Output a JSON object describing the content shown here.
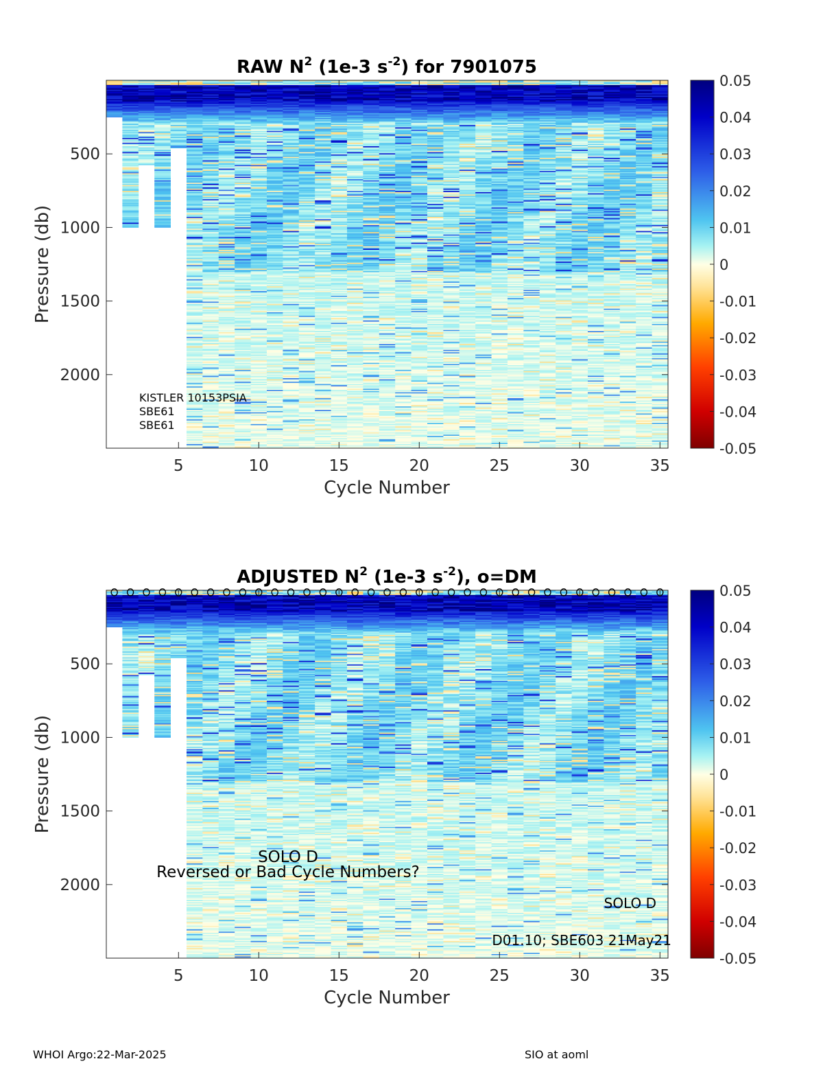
{
  "footer": {
    "left": "WHOI Argo:22-Mar-2025",
    "right": "SIO at aoml"
  },
  "chart_data": [
    {
      "type": "heatmap",
      "title": {
        "main": "RAW N",
        "sup1": "2",
        "mid": " (1e-3 s",
        "sup2": "-2",
        "end": ") for 7901075"
      },
      "xlabel": "Cycle Number",
      "ylabel": "Pressure (db)",
      "xlim": [
        1,
        35
      ],
      "ylim": [
        2500,
        0
      ],
      "y_reversed": true,
      "xticks": [
        5,
        10,
        15,
        20,
        25,
        30,
        35
      ],
      "yticks": [
        500,
        1000,
        1500,
        2000
      ],
      "colorbar": {
        "min": -0.05,
        "max": 0.05,
        "ticks": [
          "0.05",
          "0.04",
          "0.03",
          "0.02",
          "0.01",
          "0",
          "-0.01",
          "-0.02",
          "-0.03",
          "-0.04",
          "-0.05"
        ]
      },
      "colormap": {
        "positive": "#00007f",
        "mid": "#ffffe6",
        "negative": "#7f0000"
      },
      "max_depth_by_cycle": [
        {
          "cycle": 1,
          "max_pressure": 250
        },
        {
          "cycle": 2,
          "max_pressure": 1000
        },
        {
          "cycle": 3,
          "max_pressure": 575
        },
        {
          "cycle": 4,
          "max_pressure": 1000
        },
        {
          "cycle": 5,
          "max_pressure": 460
        },
        {
          "cycle": 6,
          "max_pressure": 2500
        }
      ],
      "full_depth_from_cycle": 6,
      "full_depth_pressure": 2500,
      "annotations": [
        "KISTLER 10153PSIA",
        "SBE61",
        "SBE61"
      ],
      "dm_markers": false
    },
    {
      "type": "heatmap",
      "title": {
        "main": "ADJUSTED N",
        "sup1": "2",
        "mid": " (1e-3 s",
        "sup2": "-2",
        "end": "), o=DM"
      },
      "xlabel": "Cycle Number",
      "ylabel": "Pressure (db)",
      "xlim": [
        1,
        35
      ],
      "ylim": [
        2500,
        0
      ],
      "y_reversed": true,
      "xticks": [
        5,
        10,
        15,
        20,
        25,
        30,
        35
      ],
      "yticks": [
        500,
        1000,
        1500,
        2000
      ],
      "colorbar": {
        "min": -0.05,
        "max": 0.05,
        "ticks": [
          "0.05",
          "0.04",
          "0.03",
          "0.02",
          "0.01",
          "0",
          "-0.01",
          "-0.02",
          "-0.03",
          "-0.04",
          "-0.05"
        ]
      },
      "colormap": {
        "positive": "#00007f",
        "mid": "#ffffe6",
        "negative": "#7f0000"
      },
      "max_depth_by_cycle": [
        {
          "cycle": 1,
          "max_pressure": 250
        },
        {
          "cycle": 2,
          "max_pressure": 1000
        },
        {
          "cycle": 3,
          "max_pressure": 575
        },
        {
          "cycle": 4,
          "max_pressure": 1000
        },
        {
          "cycle": 5,
          "max_pressure": 460
        },
        {
          "cycle": 6,
          "max_pressure": 2500
        }
      ],
      "full_depth_from_cycle": 6,
      "full_depth_pressure": 2500,
      "annotations": {
        "center1": "SOLO D",
        "center2": "Reversed or Bad Cycle Numbers?",
        "right1": "SOLO D",
        "right2": "D01.10; SBE603 21May21"
      },
      "dm_markers": true,
      "dm_cycles": [
        1,
        2,
        3,
        4,
        5,
        6,
        7,
        8,
        9,
        10,
        11,
        12,
        13,
        14,
        15,
        16,
        17,
        18,
        19,
        20,
        21,
        22,
        23,
        24,
        25,
        26,
        27,
        28,
        29,
        30,
        31,
        32,
        33,
        34,
        35
      ]
    }
  ]
}
